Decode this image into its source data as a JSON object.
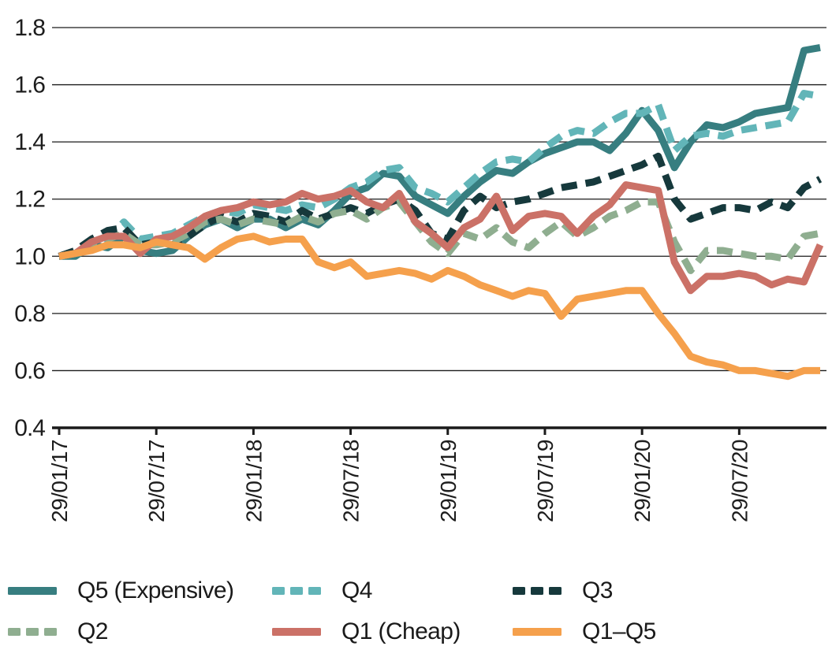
{
  "chart_data": {
    "type": "line",
    "title": "",
    "xlabel": "",
    "ylabel": "",
    "ylim": [
      0.4,
      1.8
    ],
    "grid": "horizontal",
    "legend_position": "bottom",
    "frequency": "monthly",
    "x_start": "29/01/17",
    "x_end": "29/12/20",
    "axis_color": "#1a1a1a",
    "y_ticks": [
      "1.8",
      "1.6",
      "1.4",
      "1.2",
      "1.0",
      "0.8",
      "0.6",
      "0.4"
    ],
    "x_ticks": [
      {
        "i": 0,
        "label": "29/01/17"
      },
      {
        "i": 6,
        "label": "29/07/17"
      },
      {
        "i": 12,
        "label": "29/01/18"
      },
      {
        "i": 18,
        "label": "29/07/18"
      },
      {
        "i": 24,
        "label": "29/01/19"
      },
      {
        "i": 30,
        "label": "29/07/19"
      },
      {
        "i": 36,
        "label": "29/01/20"
      },
      {
        "i": 42,
        "label": "29/07/20"
      }
    ],
    "series": [
      {
        "name": "Q5 (Expensive)",
        "color": "#377E80",
        "style": "solid",
        "values": [
          1.0,
          1.0,
          1.04,
          1.03,
          1.07,
          1.02,
          1.01,
          1.02,
          1.07,
          1.11,
          1.13,
          1.1,
          1.13,
          1.13,
          1.1,
          1.13,
          1.11,
          1.16,
          1.22,
          1.24,
          1.29,
          1.28,
          1.21,
          1.18,
          1.15,
          1.21,
          1.26,
          1.3,
          1.29,
          1.33,
          1.36,
          1.38,
          1.4,
          1.4,
          1.37,
          1.43,
          1.51,
          1.44,
          1.31,
          1.4,
          1.46,
          1.45,
          1.47,
          1.5,
          1.51,
          1.52,
          1.72,
          1.73
        ]
      },
      {
        "name": "Q4",
        "color": "#62B5B8",
        "style": "dashed",
        "values": [
          1.0,
          1.01,
          1.05,
          1.06,
          1.12,
          1.06,
          1.07,
          1.08,
          1.11,
          1.14,
          1.16,
          1.15,
          1.18,
          1.17,
          1.16,
          1.18,
          1.17,
          1.2,
          1.24,
          1.26,
          1.3,
          1.31,
          1.24,
          1.22,
          1.19,
          1.24,
          1.29,
          1.33,
          1.34,
          1.33,
          1.38,
          1.42,
          1.44,
          1.43,
          1.47,
          1.5,
          1.5,
          1.53,
          1.37,
          1.42,
          1.43,
          1.42,
          1.44,
          1.45,
          1.46,
          1.47,
          1.57,
          1.56
        ]
      },
      {
        "name": "Q3",
        "color": "#16393C",
        "style": "dashed",
        "values": [
          1.0,
          1.02,
          1.06,
          1.09,
          1.1,
          1.04,
          1.05,
          1.04,
          1.07,
          1.11,
          1.14,
          1.12,
          1.15,
          1.14,
          1.12,
          1.16,
          1.13,
          1.15,
          1.17,
          1.15,
          1.18,
          1.2,
          1.16,
          1.08,
          1.06,
          1.16,
          1.21,
          1.17,
          1.19,
          1.2,
          1.22,
          1.24,
          1.25,
          1.26,
          1.28,
          1.3,
          1.32,
          1.35,
          1.2,
          1.13,
          1.15,
          1.17,
          1.17,
          1.16,
          1.19,
          1.17,
          1.24,
          1.27
        ]
      },
      {
        "name": "Q2",
        "color": "#8FAE90",
        "style": "dashed",
        "values": [
          1.0,
          1.01,
          1.04,
          1.06,
          1.08,
          1.04,
          1.04,
          1.05,
          1.08,
          1.12,
          1.13,
          1.11,
          1.13,
          1.12,
          1.11,
          1.14,
          1.12,
          1.15,
          1.16,
          1.13,
          1.17,
          1.19,
          1.12,
          1.05,
          1.01,
          1.08,
          1.06,
          1.1,
          1.05,
          1.03,
          1.08,
          1.12,
          1.07,
          1.1,
          1.14,
          1.16,
          1.19,
          1.19,
          1.05,
          0.95,
          1.02,
          1.02,
          1.01,
          1.0,
          1.0,
          0.99,
          1.07,
          1.08
        ]
      },
      {
        "name": "Q1 (Cheap)",
        "color": "#CB7167",
        "style": "solid",
        "values": [
          1.0,
          1.01,
          1.05,
          1.07,
          1.07,
          1.01,
          1.06,
          1.07,
          1.1,
          1.14,
          1.16,
          1.17,
          1.19,
          1.18,
          1.19,
          1.22,
          1.2,
          1.21,
          1.23,
          1.19,
          1.17,
          1.22,
          1.12,
          1.08,
          1.03,
          1.1,
          1.13,
          1.21,
          1.09,
          1.14,
          1.15,
          1.14,
          1.08,
          1.14,
          1.18,
          1.25,
          1.24,
          1.23,
          0.98,
          0.88,
          0.93,
          0.93,
          0.94,
          0.93,
          0.9,
          0.92,
          0.91,
          1.04
        ]
      },
      {
        "name": "Q1–Q5",
        "color": "#F5A04C",
        "style": "solid",
        "values": [
          1.0,
          1.01,
          1.02,
          1.04,
          1.04,
          1.03,
          1.05,
          1.04,
          1.03,
          0.99,
          1.03,
          1.06,
          1.07,
          1.05,
          1.06,
          1.06,
          0.98,
          0.96,
          0.98,
          0.93,
          0.94,
          0.95,
          0.94,
          0.92,
          0.95,
          0.93,
          0.9,
          0.88,
          0.86,
          0.88,
          0.87,
          0.79,
          0.85,
          0.86,
          0.87,
          0.88,
          0.88,
          0.8,
          0.73,
          0.65,
          0.63,
          0.62,
          0.6,
          0.6,
          0.59,
          0.58,
          0.6,
          0.6
        ]
      }
    ]
  }
}
